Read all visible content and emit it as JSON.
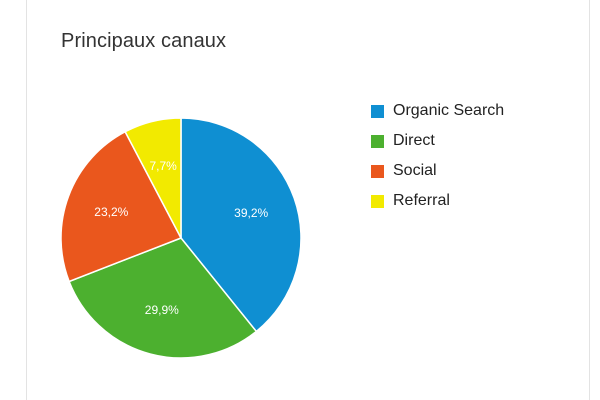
{
  "card": {
    "title": "Principaux canaux"
  },
  "chart_data": {
    "type": "pie",
    "title": "Principaux canaux",
    "legend_position": "right",
    "start_angle_deg": 0,
    "direction": "clockwise",
    "slices": [
      {
        "name": "Organic Search",
        "value": 39.2,
        "label": "39,2%",
        "color": "#0f8fd2"
      },
      {
        "name": "Direct",
        "value": 29.9,
        "label": "29,9%",
        "color": "#4cb02f"
      },
      {
        "name": "Social",
        "value": 23.2,
        "label": "23,2%",
        "color": "#ea571d"
      },
      {
        "name": "Referral",
        "value": 7.7,
        "label": "7,7%",
        "color": "#f2ea00"
      }
    ]
  }
}
